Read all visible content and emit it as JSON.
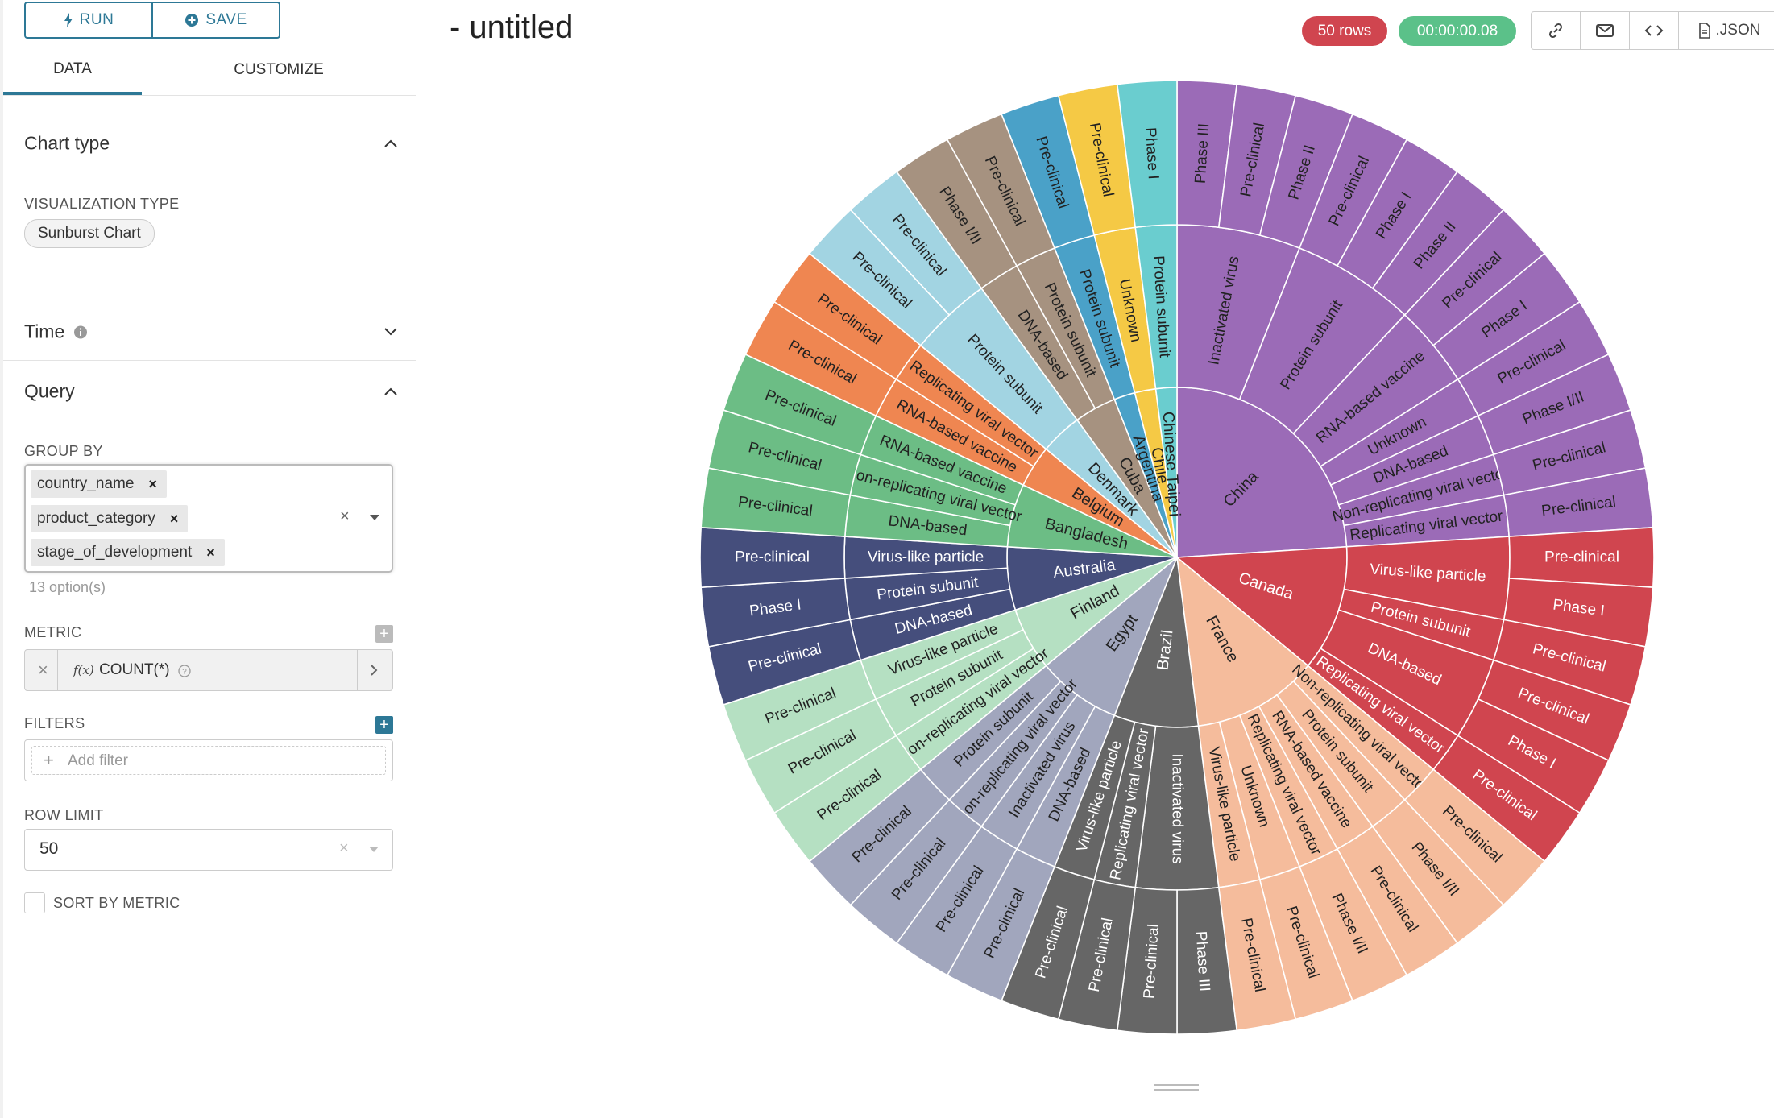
{
  "toolbar": {
    "run_label": "RUN",
    "save_label": "SAVE"
  },
  "tabs": [
    {
      "label": "DATA"
    },
    {
      "label": "CUSTOMIZE"
    }
  ],
  "sections": {
    "chart_type": {
      "title": "Chart type",
      "viz_label": "VISUALIZATION TYPE",
      "viz_value": "Sunburst Chart"
    },
    "time": {
      "title": "Time"
    },
    "query": {
      "title": "Query",
      "group_by_label": "GROUP BY",
      "group_by": [
        "country_name",
        "product_category",
        "stage_of_development"
      ],
      "options_hint": "13 option(s)",
      "metric_label": "METRIC",
      "metric_fx": "f(x)",
      "metric_value": "COUNT(*)",
      "filters_label": "FILTERS",
      "add_filter": "Add filter",
      "row_limit_label": "ROW LIMIT",
      "row_limit_value": "50",
      "sort_by_metric": "SORT BY METRIC"
    }
  },
  "header": {
    "title": "- untitled",
    "rows_badge": "50 rows",
    "time_badge": "00:00:00.08",
    "json_label": ".JSON",
    "colors": {
      "rows": "#d0454f",
      "time": "#5bc189"
    }
  },
  "chart_data": {
    "type": "sunburst",
    "levels": [
      "country_name",
      "product_category",
      "stage_of_development"
    ],
    "metric": "COUNT(*)",
    "rows": 50,
    "countries": [
      {
        "name": "China",
        "color": "#9b6bb7",
        "children": [
          {
            "name": "Inactivated virus",
            "children": [
              {
                "name": "Phase III",
                "value": 1
              },
              {
                "name": "Pre-clinical",
                "value": 1
              },
              {
                "name": "Phase II",
                "value": 1
              }
            ]
          },
          {
            "name": "Protein subunit",
            "children": [
              {
                "name": "Pre-clinical",
                "value": 1
              },
              {
                "name": "Phase I",
                "value": 1
              },
              {
                "name": "Phase II",
                "value": 1
              }
            ]
          },
          {
            "name": "RNA-based vaccine",
            "children": [
              {
                "name": "Pre-clinical",
                "value": 1
              },
              {
                "name": "Phase I",
                "value": 1
              }
            ]
          },
          {
            "name": "Unknown",
            "children": [
              {
                "name": "Pre-clinical",
                "value": 1
              }
            ]
          },
          {
            "name": "DNA-based",
            "children": [
              {
                "name": "Phase I/II",
                "value": 1
              }
            ]
          },
          {
            "name": "Non-replicating viral vector",
            "children": [
              {
                "name": "Pre-clinical",
                "value": 1
              }
            ]
          },
          {
            "name": "Replicating viral vector",
            "children": [
              {
                "name": "Pre-clinical",
                "value": 1
              }
            ]
          }
        ]
      },
      {
        "name": "Canada",
        "color": "#d0454f",
        "children": [
          {
            "name": "Virus-like particle",
            "children": [
              {
                "name": "Pre-clinical",
                "value": 1
              },
              {
                "name": "Phase I",
                "value": 1
              }
            ]
          },
          {
            "name": "Protein subunit",
            "children": [
              {
                "name": "Pre-clinical",
                "value": 1
              }
            ]
          },
          {
            "name": "DNA-based",
            "children": [
              {
                "name": "Pre-clinical",
                "value": 1
              },
              {
                "name": "Phase I",
                "value": 1
              }
            ]
          },
          {
            "name": "Replicating viral vector",
            "children": [
              {
                "name": "Pre-clinical",
                "value": 1
              }
            ]
          }
        ]
      },
      {
        "name": "France",
        "color": "#f5bc9c",
        "children": [
          {
            "name": "Non-replicating viral vector",
            "children": [
              {
                "name": "Pre-clinical",
                "value": 1
              }
            ]
          },
          {
            "name": "Protein subunit",
            "children": [
              {
                "name": "Phase I/II",
                "value": 1
              }
            ]
          },
          {
            "name": "RNA-based vaccine",
            "children": [
              {
                "name": "Pre-clinical",
                "value": 1
              }
            ]
          },
          {
            "name": "Replicating viral vector",
            "children": [
              {
                "name": "Phase I/II",
                "value": 1
              }
            ]
          },
          {
            "name": "Unknown",
            "children": [
              {
                "name": "Pre-clinical",
                "value": 1
              }
            ]
          },
          {
            "name": "Virus-like particle",
            "children": [
              {
                "name": "Pre-clinical",
                "value": 1
              }
            ]
          }
        ]
      },
      {
        "name": "Brazil",
        "color": "#666666",
        "children": [
          {
            "name": "Inactivated virus",
            "children": [
              {
                "name": "Phase III",
                "value": 1
              },
              {
                "name": "Pre-clinical",
                "value": 1
              }
            ]
          },
          {
            "name": "Replicating viral vector",
            "children": [
              {
                "name": "Pre-clinical",
                "value": 1
              }
            ]
          },
          {
            "name": "Virus-like particle",
            "children": [
              {
                "name": "Pre-clinical",
                "value": 1
              }
            ]
          }
        ]
      },
      {
        "name": "Egypt",
        "color": "#a1a6bd",
        "children": [
          {
            "name": "DNA-based",
            "children": [
              {
                "name": "Pre-clinical",
                "value": 1
              }
            ]
          },
          {
            "name": "Inactivated virus",
            "children": [
              {
                "name": "Pre-clinical",
                "value": 1
              }
            ]
          },
          {
            "name": "Non-replicating viral vector",
            "children": [
              {
                "name": "Pre-clinical",
                "value": 1
              }
            ]
          },
          {
            "name": "Protein subunit",
            "children": [
              {
                "name": "Pre-clinical",
                "value": 1
              }
            ]
          }
        ]
      },
      {
        "name": "Finland",
        "color": "#b5e0c2",
        "children": [
          {
            "name": "Non-replicating viral vector",
            "children": [
              {
                "name": "Pre-clinical",
                "value": 1
              }
            ]
          },
          {
            "name": "Protein subunit",
            "children": [
              {
                "name": "Pre-clinical",
                "value": 1
              }
            ]
          },
          {
            "name": "Virus-like particle",
            "children": [
              {
                "name": "Pre-clinical",
                "value": 1
              }
            ]
          }
        ]
      },
      {
        "name": "Australia",
        "color": "#454e7c",
        "children": [
          {
            "name": "DNA-based",
            "children": [
              {
                "name": "Pre-clinical",
                "value": 1
              }
            ]
          },
          {
            "name": "Protein subunit",
            "children": [
              {
                "name": "Phase I",
                "value": 1
              }
            ]
          },
          {
            "name": "Virus-like particle",
            "children": [
              {
                "name": "Pre-clinical",
                "value": 1
              }
            ]
          }
        ]
      },
      {
        "name": "Bangladesh",
        "color": "#6cbd85",
        "children": [
          {
            "name": "DNA-based",
            "children": [
              {
                "name": "Pre-clinical",
                "value": 1
              }
            ]
          },
          {
            "name": "Non-replicating viral vector",
            "children": [
              {
                "name": "Pre-clinical",
                "value": 1
              }
            ]
          },
          {
            "name": "RNA-based vaccine",
            "children": [
              {
                "name": "Pre-clinical",
                "value": 1
              }
            ]
          }
        ]
      },
      {
        "name": "Belgium",
        "color": "#ef8651",
        "children": [
          {
            "name": "RNA-based vaccine",
            "children": [
              {
                "name": "Pre-clinical",
                "value": 1
              }
            ]
          },
          {
            "name": "Replicating viral vector",
            "children": [
              {
                "name": "Pre-clinical",
                "value": 1
              }
            ]
          }
        ]
      },
      {
        "name": "Denmark",
        "color": "#a2d4e2",
        "children": [
          {
            "name": "Protein subunit",
            "children": [
              {
                "name": "Pre-clinical",
                "value": 1
              },
              {
                "name": "Pre-clinical",
                "value": 1
              }
            ]
          }
        ]
      },
      {
        "name": "Cuba",
        "color": "#a69280",
        "children": [
          {
            "name": "DNA-based",
            "children": [
              {
                "name": "Phase I/II",
                "value": 1
              }
            ]
          },
          {
            "name": "Protein subunit",
            "children": [
              {
                "name": "Pre-clinical",
                "value": 1
              }
            ]
          }
        ]
      },
      {
        "name": "Argentina",
        "color": "#4aa1c8",
        "children": [
          {
            "name": "Protein subunit",
            "children": [
              {
                "name": "Pre-clinical",
                "value": 1
              }
            ]
          }
        ]
      },
      {
        "name": "Chile",
        "color": "#f5c945",
        "children": [
          {
            "name": "Unknown",
            "children": [
              {
                "name": "Pre-clinical",
                "value": 1
              }
            ]
          }
        ]
      },
      {
        "name": "Chinese Taipei",
        "color": "#6acdcf",
        "children": [
          {
            "name": "Protein subunit",
            "children": [
              {
                "name": "Phase I",
                "value": 1
              }
            ]
          }
        ]
      }
    ]
  }
}
